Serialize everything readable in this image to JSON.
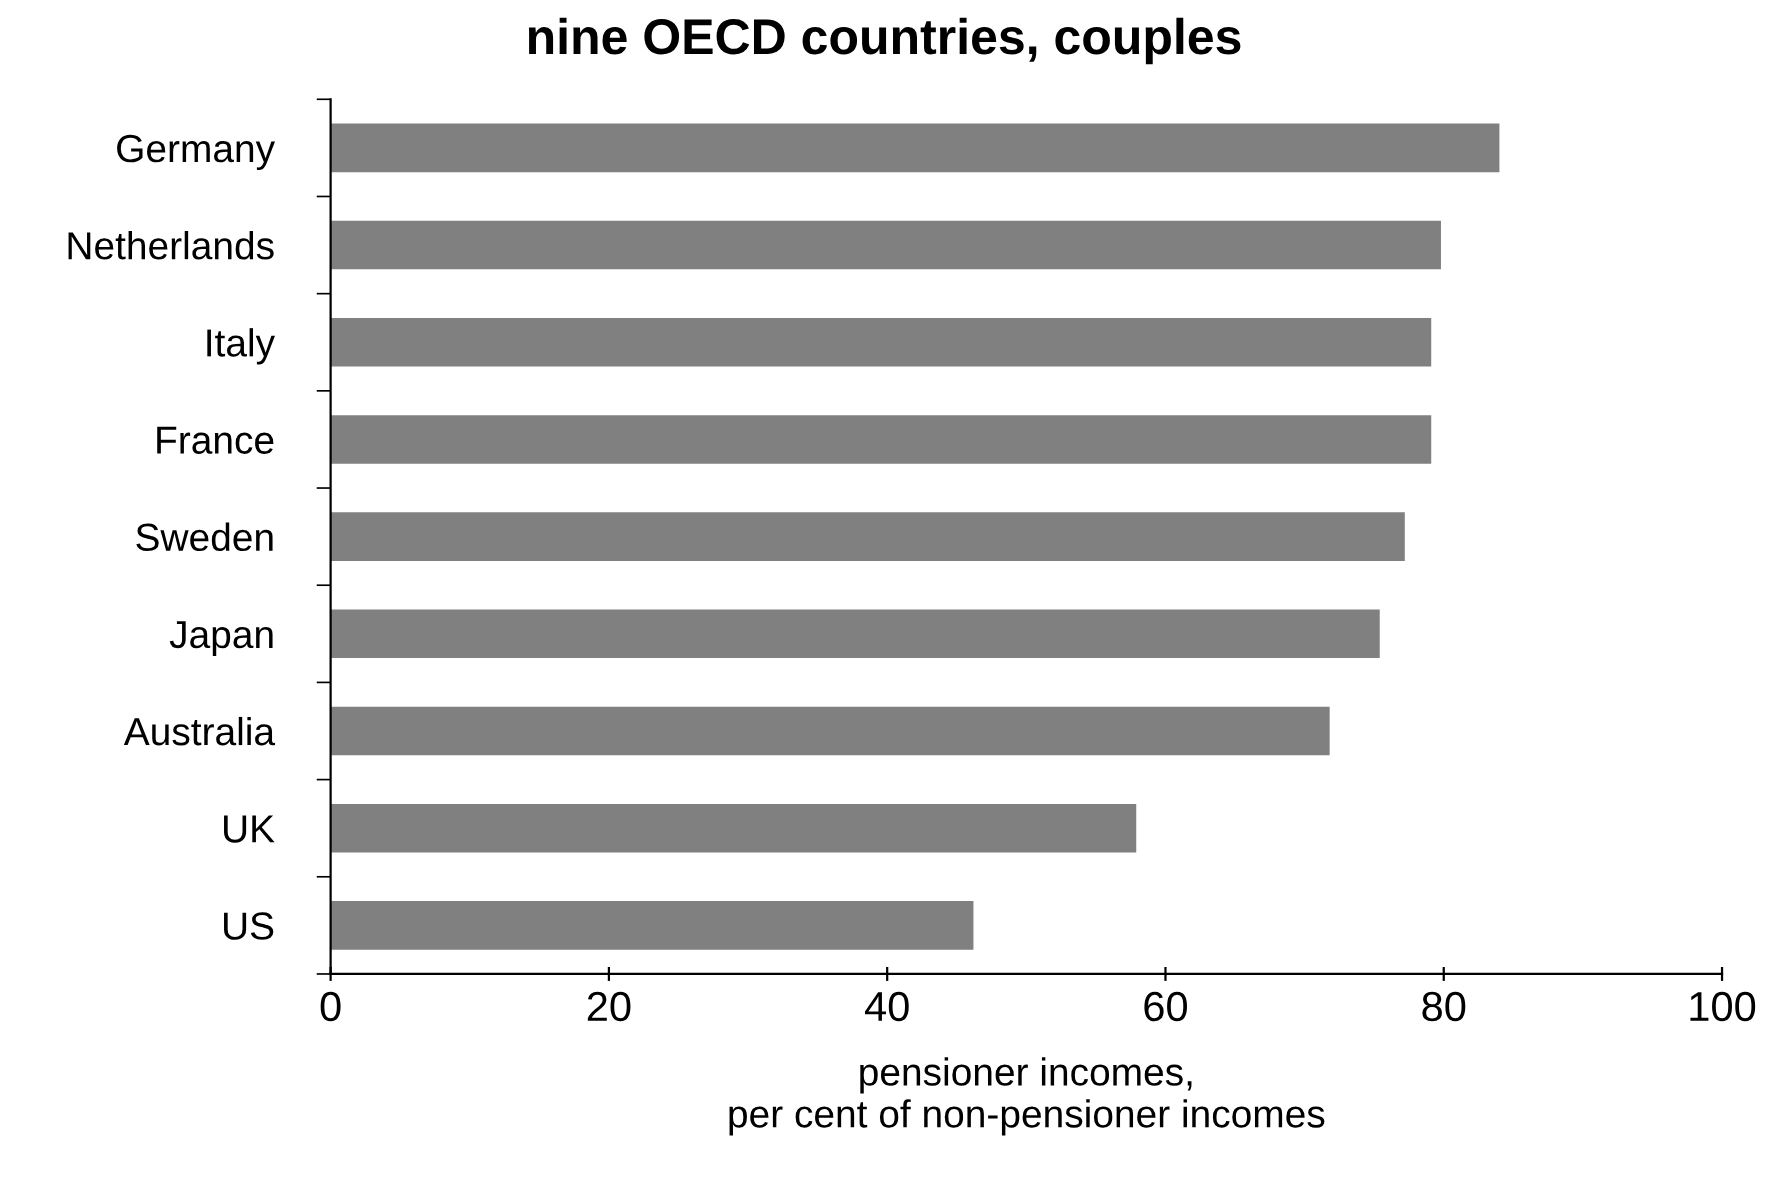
{
  "chart_data": {
    "type": "bar",
    "orientation": "horizontal",
    "title": "nine OECD countries, couples",
    "xlabel": "pensioner incomes,\nper cent of non-pensioner incomes",
    "categories": [
      "Germany",
      "Netherlands",
      "Italy",
      "France",
      "Sweden",
      "Japan",
      "Australia",
      "UK",
      "US"
    ],
    "values": [
      84.0,
      79.8,
      79.1,
      79.1,
      77.2,
      75.4,
      71.8,
      57.9,
      46.2
    ],
    "color": "#808080",
    "xlim": [
      0,
      100
    ],
    "xticks": [
      0,
      20,
      40,
      60,
      80,
      100
    ],
    "grid": false,
    "legend": false
  }
}
